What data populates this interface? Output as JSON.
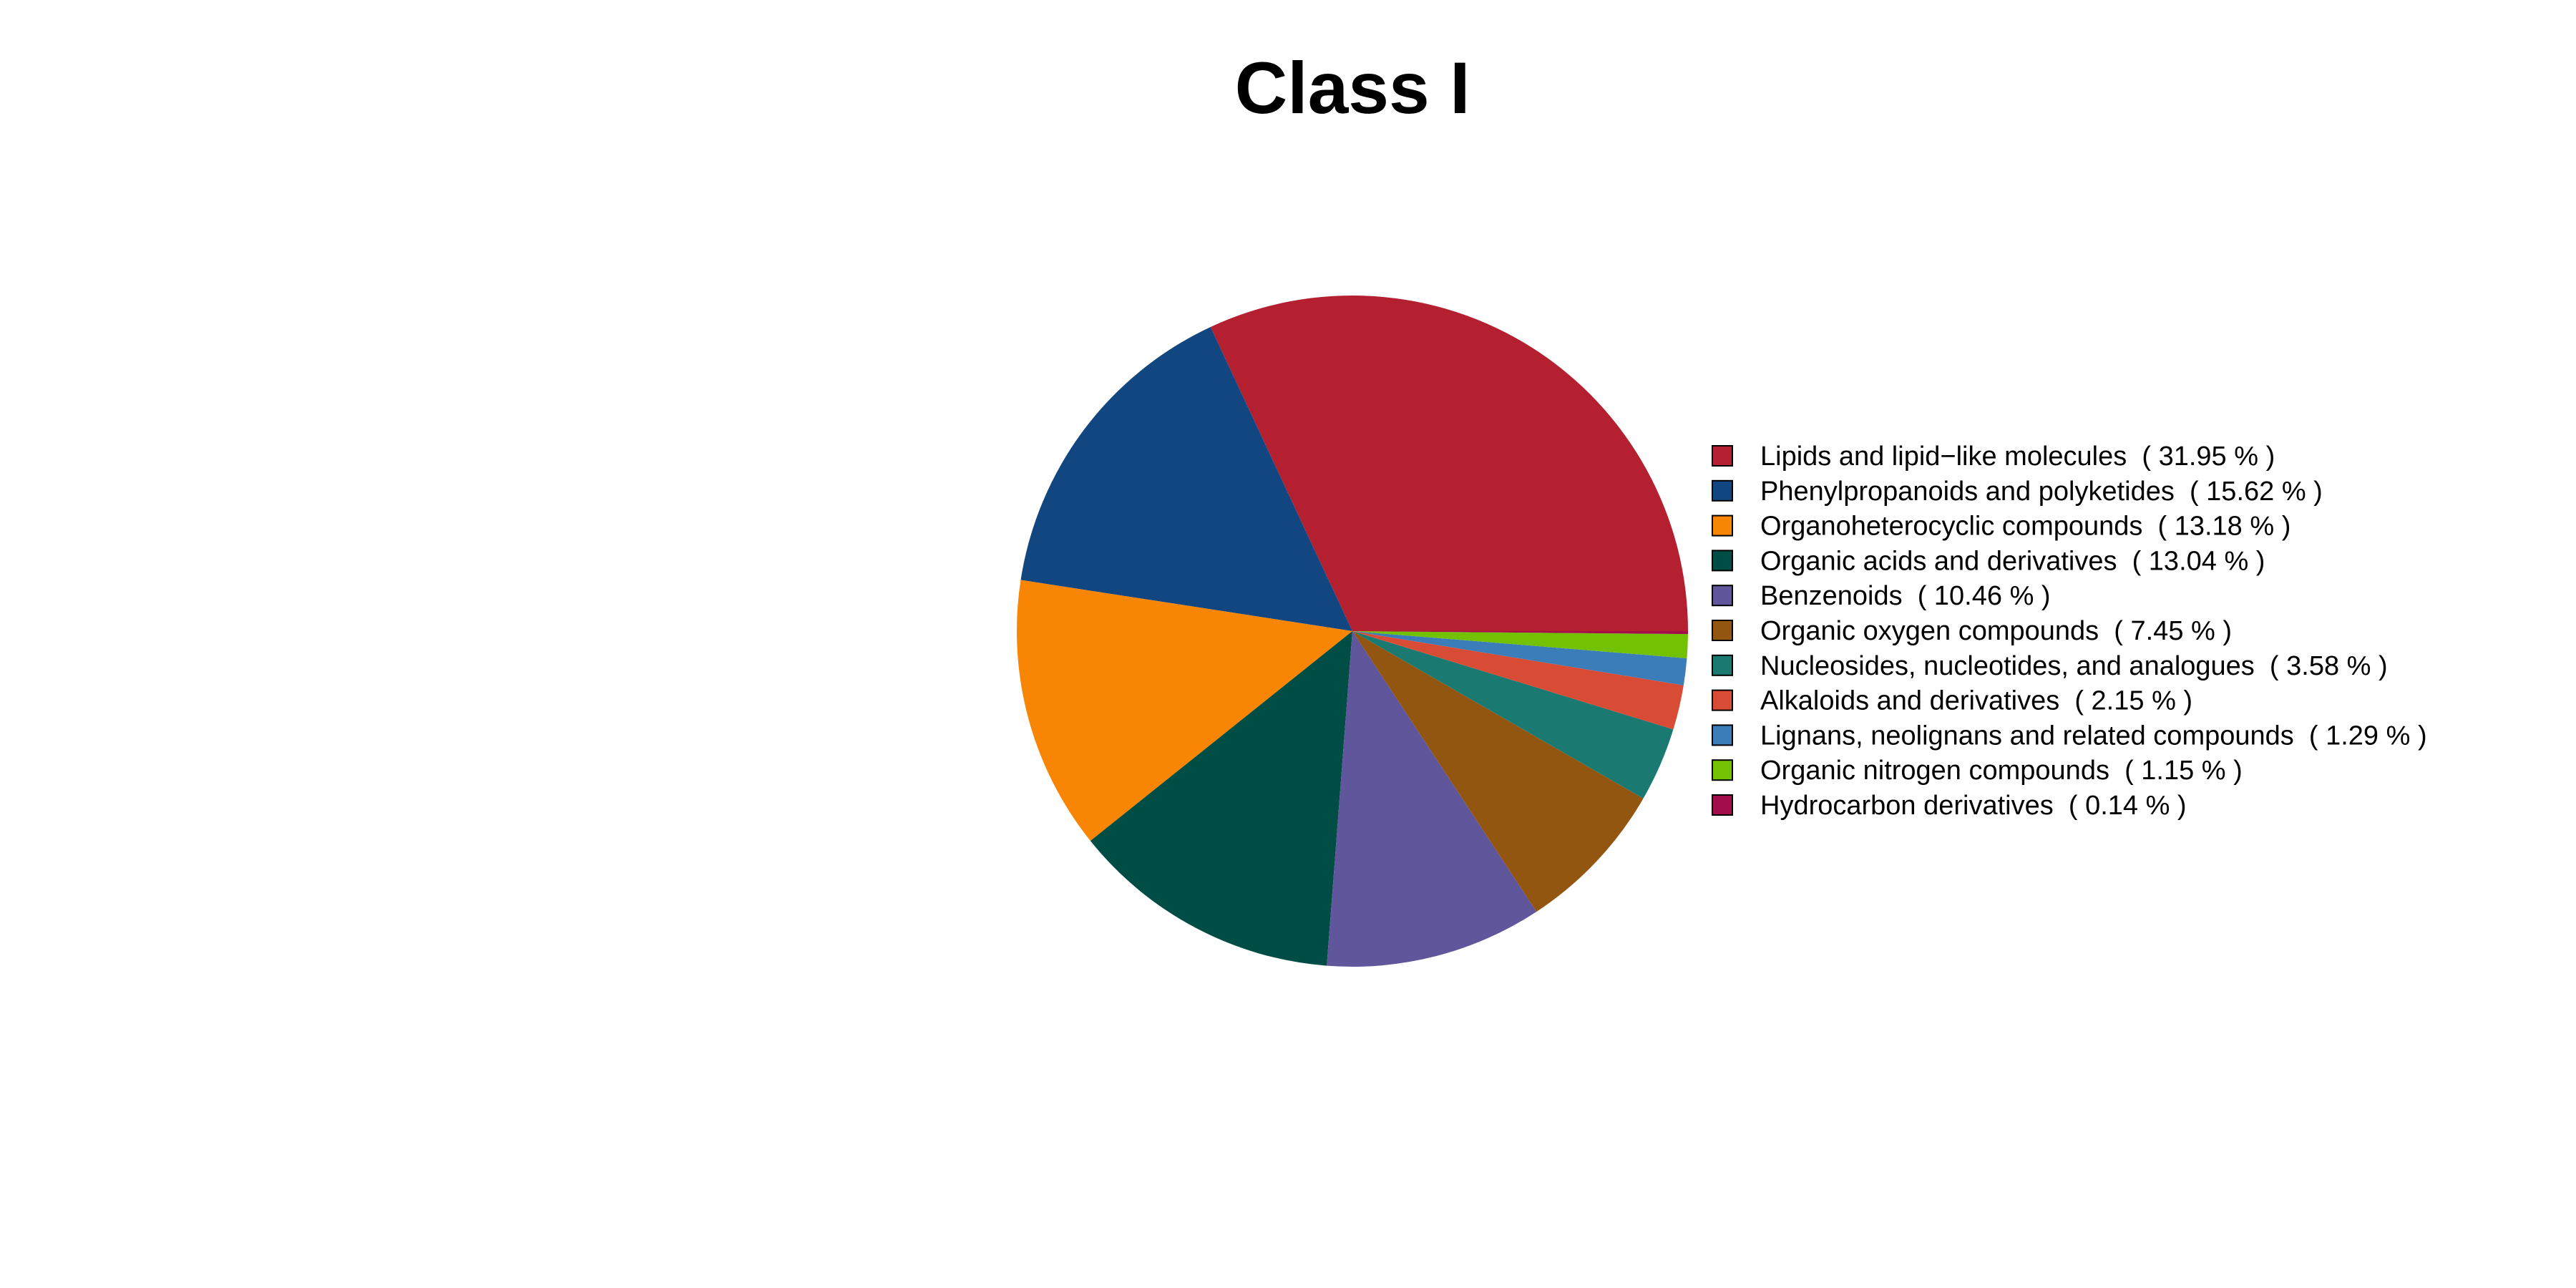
{
  "chart_data": {
    "type": "pie",
    "title": "Class I",
    "legend_position": "right",
    "start_angle_deg": 0,
    "direction": "counterclockwise",
    "slices": [
      {
        "label": "Lipids and lipid−like molecules",
        "value": 31.95,
        "legend_text": "Lipids and lipid−like molecules  ( 31.95 % )",
        "color": "#B52030"
      },
      {
        "label": "Phenylpropanoids and polyketides",
        "value": 15.62,
        "legend_text": "Phenylpropanoids and polyketides  ( 15.62 % )",
        "color": "#124680"
      },
      {
        "label": "Organoheterocyclic compounds",
        "value": 13.18,
        "legend_text": "Organoheterocyclic compounds  ( 13.18 % )",
        "color": "#F88604"
      },
      {
        "label": "Organic acids and derivatives",
        "value": 13.04,
        "legend_text": "Organic acids and derivatives  ( 13.04 % )",
        "color": "#004D45"
      },
      {
        "label": "Benzenoids",
        "value": 10.46,
        "legend_text": "Benzenoids  ( 10.46 % )",
        "color": "#5F569B"
      },
      {
        "label": "Organic oxygen compounds",
        "value": 7.45,
        "legend_text": "Organic oxygen compounds  ( 7.45 % )",
        "color": "#925610"
      },
      {
        "label": "Nucleosides, nucleotides, and analogues",
        "value": 3.58,
        "legend_text": "Nucleosides, nucleotides, and analogues  ( 3.58 % )",
        "color": "#1A7A72"
      },
      {
        "label": "Alkaloids and derivatives",
        "value": 2.15,
        "legend_text": "Alkaloids and derivatives  ( 2.15 % )",
        "color": "#D84B34"
      },
      {
        "label": "Lignans, neolignans and related compounds",
        "value": 1.29,
        "legend_text": "Lignans, neolignans and related compounds  ( 1.29 % )",
        "color": "#3B7DB9"
      },
      {
        "label": "Organic nitrogen compounds",
        "value": 1.15,
        "legend_text": "Organic nitrogen compounds  ( 1.15 % )",
        "color": "#72C103"
      },
      {
        "label": "Hydrocarbon derivatives",
        "value": 0.14,
        "legend_text": "Hydrocarbon derivatives  ( 0.14 % )",
        "color": "#A20D4A"
      }
    ]
  }
}
